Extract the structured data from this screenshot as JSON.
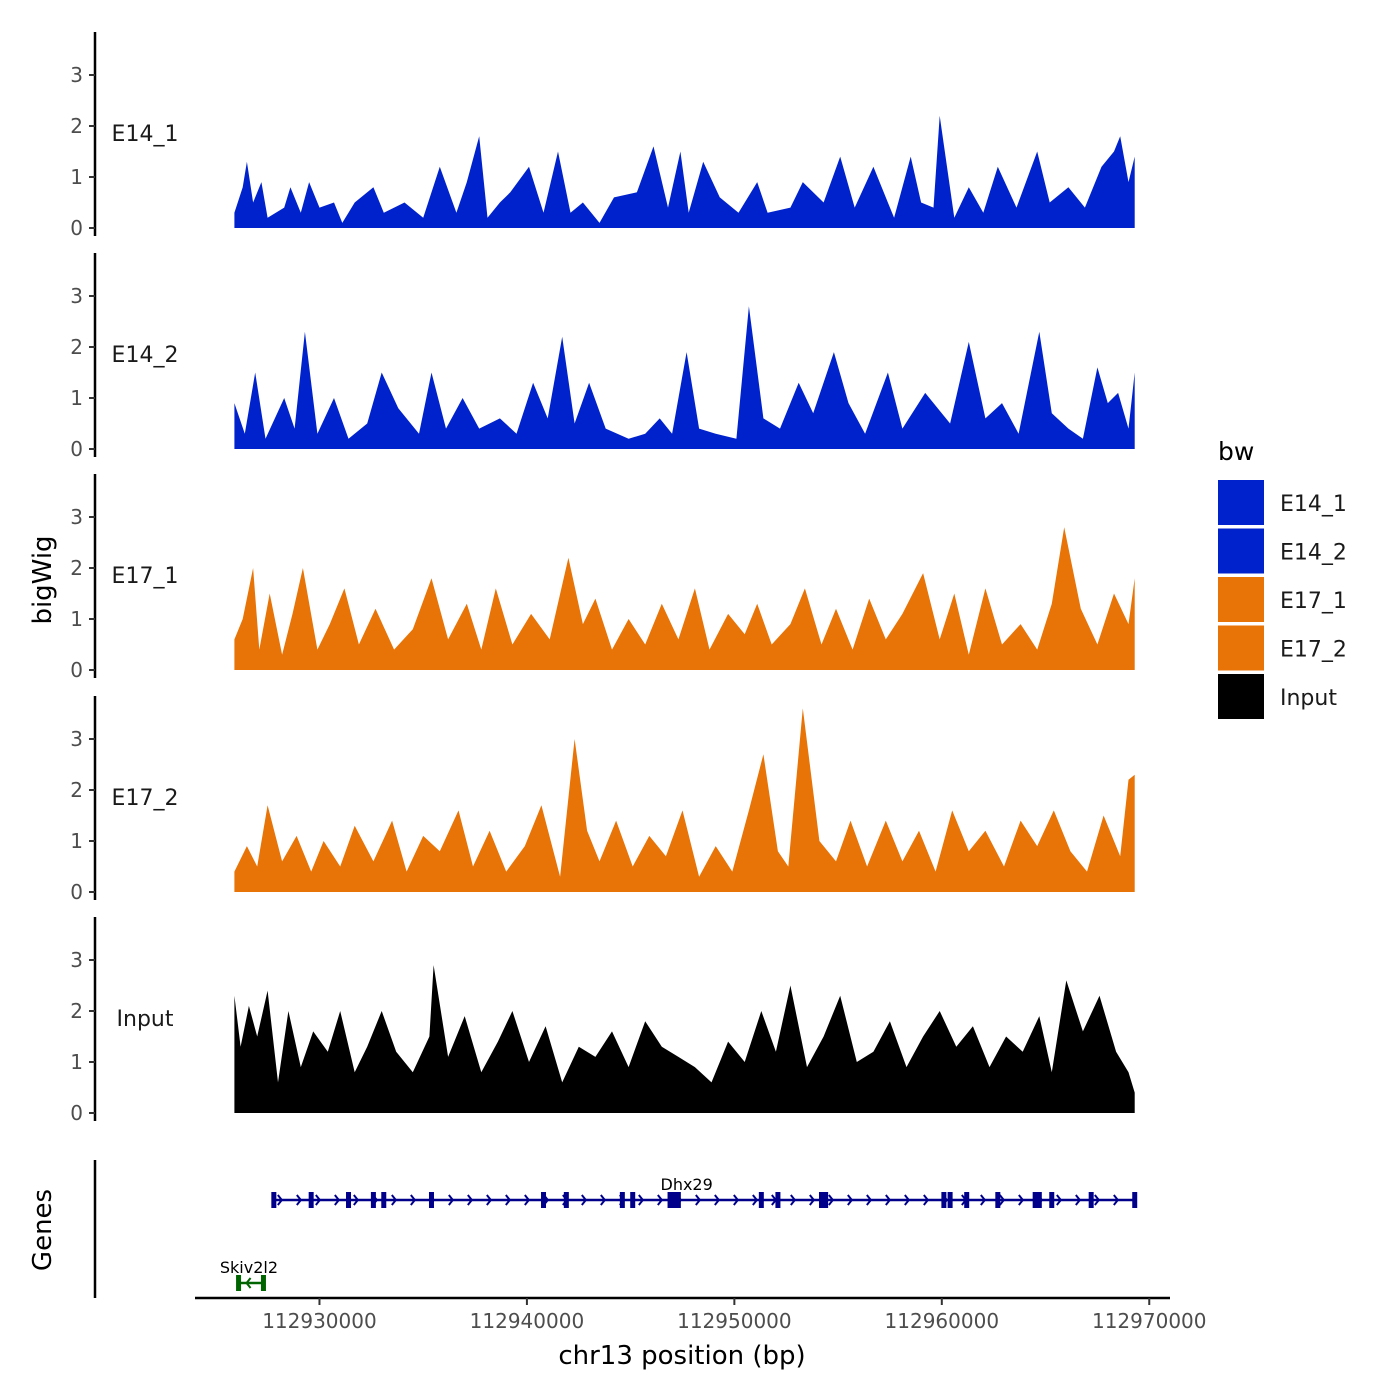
{
  "chart_data": {
    "type": "area",
    "title": "",
    "xlabel": "chr13 position (bp)",
    "ylabel": "bigWig",
    "xlim": [
      112924000,
      112971000
    ],
    "ylim": [
      0,
      3.8
    ],
    "x_ticks": [
      112930000,
      112940000,
      112950000,
      112960000,
      112970000
    ],
    "x_tick_labels": [
      "112930000",
      "112940000",
      "112950000",
      "112960000",
      "112970000"
    ],
    "y_ticks": [
      0,
      1,
      2,
      3
    ],
    "y_tick_labels": [
      "0",
      "1",
      "2",
      "3"
    ],
    "legend": {
      "title": "bw",
      "position": "right",
      "entries": [
        {
          "label": "E14_1",
          "color": "#0022CC"
        },
        {
          "label": "E14_2",
          "color": "#0022CC"
        },
        {
          "label": "E17_1",
          "color": "#E87306"
        },
        {
          "label": "E17_2",
          "color": "#E87306"
        },
        {
          "label": "Input",
          "color": "#000000"
        }
      ]
    },
    "series": [
      {
        "name": "E14_1",
        "color": "#0022CC",
        "x": [
          112925900,
          112926300,
          112926500,
          112926800,
          112927200,
          112927500,
          112928300,
          112928600,
          112929100,
          112929500,
          112930000,
          112930700,
          112931100,
          112931700,
          112932600,
          112933100,
          112934100,
          112935000,
          112935800,
          112936600,
          112937100,
          112937700,
          112938100,
          112938700,
          112939200,
          112940100,
          112940800,
          112941500,
          112942100,
          112942700,
          112943500,
          112944200,
          112945300,
          112946100,
          112946800,
          112947400,
          112947800,
          112948500,
          112949300,
          112950200,
          112951100,
          112951600,
          112952700,
          112953300,
          112954300,
          112955100,
          112955800,
          112956700,
          112957700,
          112958500,
          112959000,
          112959600,
          112959900,
          112960600,
          112961300,
          112962000,
          112962700,
          112963600,
          112964600,
          112965200,
          112966100,
          112966900,
          112967700,
          112968300,
          112968600,
          112969000,
          112969300
        ],
        "values": [
          0.3,
          0.8,
          1.3,
          0.5,
          0.9,
          0.2,
          0.4,
          0.8,
          0.3,
          0.9,
          0.4,
          0.5,
          0.1,
          0.5,
          0.8,
          0.3,
          0.5,
          0.2,
          1.2,
          0.3,
          0.9,
          1.8,
          0.2,
          0.5,
          0.7,
          1.2,
          0.3,
          1.5,
          0.3,
          0.5,
          0.1,
          0.6,
          0.7,
          1.6,
          0.4,
          1.5,
          0.3,
          1.3,
          0.6,
          0.3,
          0.9,
          0.3,
          0.4,
          0.9,
          0.5,
          1.4,
          0.4,
          1.2,
          0.2,
          1.4,
          0.5,
          0.4,
          2.2,
          0.2,
          0.8,
          0.3,
          1.2,
          0.4,
          1.5,
          0.5,
          0.8,
          0.4,
          1.2,
          1.5,
          1.8,
          0.9,
          1.4
        ]
      },
      {
        "name": "E14_2",
        "color": "#0022CC",
        "x": [
          112925900,
          112926400,
          112926900,
          112927400,
          112928300,
          112928800,
          112929300,
          112929900,
          112930700,
          112931400,
          112932300,
          112933000,
          112933800,
          112934800,
          112935400,
          112936100,
          112936900,
          112937700,
          112938700,
          112939500,
          112940300,
          112941000,
          112941700,
          112942300,
          112943000,
          112943800,
          112944900,
          112945700,
          112946400,
          112947000,
          112947700,
          112948300,
          112949100,
          112950100,
          112950700,
          112951400,
          112952200,
          112953100,
          112953800,
          112954800,
          112955500,
          112956300,
          112957400,
          112958100,
          112959200,
          112960400,
          112961300,
          112962100,
          112962900,
          112963700,
          112964700,
          112965300,
          112966100,
          112966800,
          112967500,
          112968000,
          112968500,
          112969000,
          112969300
        ],
        "values": [
          0.9,
          0.3,
          1.5,
          0.2,
          1.0,
          0.4,
          2.3,
          0.3,
          1.0,
          0.2,
          0.5,
          1.5,
          0.8,
          0.3,
          1.5,
          0.4,
          1.0,
          0.4,
          0.6,
          0.3,
          1.3,
          0.6,
          2.2,
          0.5,
          1.3,
          0.4,
          0.2,
          0.3,
          0.6,
          0.3,
          1.9,
          0.4,
          0.3,
          0.2,
          2.8,
          0.6,
          0.4,
          1.3,
          0.7,
          1.9,
          0.9,
          0.3,
          1.5,
          0.4,
          1.1,
          0.5,
          2.1,
          0.6,
          0.9,
          0.3,
          2.3,
          0.7,
          0.4,
          0.2,
          1.6,
          0.9,
          1.1,
          0.4,
          1.5
        ]
      },
      {
        "name": "E17_1",
        "color": "#E87306",
        "x": [
          112925900,
          112926300,
          112926800,
          112927100,
          112927600,
          112928200,
          112928700,
          112929200,
          112929900,
          112930500,
          112931200,
          112931900,
          112932700,
          112933600,
          112934500,
          112935400,
          112936200,
          112937100,
          112937800,
          112938500,
          112939300,
          112940200,
          112941100,
          112942000,
          112942700,
          112943300,
          112944100,
          112944900,
          112945700,
          112946500,
          112947300,
          112948100,
          112948800,
          112949700,
          112950500,
          112951100,
          112951800,
          112952700,
          112953400,
          112954200,
          112954900,
          112955700,
          112956500,
          112957300,
          112958100,
          112959100,
          112959900,
          112960600,
          112961300,
          112962100,
          112962900,
          112963800,
          112964600,
          112965300,
          112965900,
          112966700,
          112967500,
          112968300,
          112969000,
          112969300
        ],
        "values": [
          0.6,
          1.0,
          2.0,
          0.4,
          1.5,
          0.3,
          1.1,
          2.0,
          0.4,
          0.9,
          1.6,
          0.5,
          1.2,
          0.4,
          0.8,
          1.8,
          0.6,
          1.3,
          0.4,
          1.6,
          0.5,
          1.1,
          0.6,
          2.2,
          0.9,
          1.4,
          0.4,
          1.0,
          0.5,
          1.3,
          0.6,
          1.6,
          0.4,
          1.1,
          0.7,
          1.3,
          0.5,
          0.9,
          1.6,
          0.5,
          1.2,
          0.4,
          1.4,
          0.6,
          1.1,
          1.9,
          0.6,
          1.5,
          0.3,
          1.6,
          0.5,
          0.9,
          0.4,
          1.3,
          2.8,
          1.2,
          0.5,
          1.5,
          0.9,
          1.8
        ]
      },
      {
        "name": "E17_2",
        "color": "#E87306",
        "x": [
          112925900,
          112926500,
          112927000,
          112927500,
          112928200,
          112928900,
          112929600,
          112930200,
          112931000,
          112931700,
          112932600,
          112933500,
          112934200,
          112935000,
          112935800,
          112936700,
          112937400,
          112938200,
          112939000,
          112939900,
          112940700,
          112941600,
          112942300,
          112942900,
          112943500,
          112944300,
          112945100,
          112945900,
          112946700,
          112947500,
          112948300,
          112949100,
          112949900,
          112950700,
          112951400,
          112952100,
          112952600,
          112953300,
          112954100,
          112954900,
          112955600,
          112956400,
          112957300,
          112958100,
          112958900,
          112959700,
          112960500,
          112961300,
          112962100,
          112963000,
          112963800,
          112964600,
          112965400,
          112966200,
          112967000,
          112967800,
          112968600,
          112969000,
          112969300
        ],
        "values": [
          0.4,
          0.9,
          0.5,
          1.7,
          0.6,
          1.1,
          0.4,
          1.0,
          0.5,
          1.3,
          0.6,
          1.4,
          0.4,
          1.1,
          0.8,
          1.6,
          0.5,
          1.2,
          0.4,
          0.9,
          1.7,
          0.3,
          3.0,
          1.2,
          0.6,
          1.4,
          0.5,
          1.1,
          0.7,
          1.6,
          0.3,
          0.9,
          0.4,
          1.6,
          2.7,
          0.8,
          0.5,
          3.6,
          1.0,
          0.6,
          1.4,
          0.5,
          1.4,
          0.6,
          1.2,
          0.4,
          1.6,
          0.8,
          1.2,
          0.5,
          1.4,
          0.9,
          1.6,
          0.8,
          0.4,
          1.5,
          0.7,
          2.2,
          2.3
        ]
      },
      {
        "name": "Input",
        "color": "#000000",
        "x": [
          112925900,
          112926200,
          112926600,
          112927000,
          112927500,
          112928000,
          112928500,
          112929100,
          112929700,
          112930400,
          112931000,
          112931700,
          112932300,
          112933000,
          112933700,
          112934500,
          112935300,
          112935500,
          112936200,
          112937000,
          112937800,
          112938600,
          112939300,
          112940100,
          112940900,
          112941700,
          112942500,
          112943300,
          112944100,
          112944900,
          112945700,
          112946500,
          112947300,
          112948100,
          112948900,
          112949700,
          112950500,
          112951300,
          112952000,
          112952700,
          112953500,
          112954300,
          112955100,
          112955900,
          112956700,
          112957500,
          112958300,
          112959100,
          112959900,
          112960700,
          112961500,
          112962300,
          112963100,
          112963900,
          112964700,
          112965300,
          112966000,
          112966800,
          112967600,
          112968400,
          112969000,
          112969300
        ],
        "values": [
          2.3,
          1.3,
          2.1,
          1.5,
          2.4,
          0.6,
          2.0,
          0.9,
          1.6,
          1.2,
          2.0,
          0.8,
          1.3,
          2.0,
          1.2,
          0.8,
          1.5,
          2.9,
          1.1,
          1.9,
          0.8,
          1.4,
          2.0,
          1.0,
          1.7,
          0.6,
          1.3,
          1.1,
          1.6,
          0.9,
          1.8,
          1.3,
          1.1,
          0.9,
          0.6,
          1.4,
          1.0,
          2.0,
          1.2,
          2.5,
          0.9,
          1.5,
          2.3,
          1.0,
          1.2,
          1.8,
          0.9,
          1.5,
          2.0,
          1.3,
          1.7,
          0.9,
          1.5,
          1.2,
          1.9,
          0.8,
          2.6,
          1.6,
          2.3,
          1.2,
          0.8,
          0.4
        ]
      }
    ],
    "genes_track": {
      "label": "Genes",
      "genes": [
        {
          "name": "Dhx29",
          "start": 112927800,
          "end": 112969300,
          "strand": "+",
          "color": "#00008B",
          "exons": [
            112927800,
            112929600,
            112931400,
            112932600,
            112933100,
            112935400,
            112940800,
            112941900,
            112944600,
            112945100,
            112946900,
            112947100,
            112947300,
            112951300,
            112952100,
            112954200,
            112954400,
            112960100,
            112960400,
            112961200,
            112962700,
            112964500,
            112964700,
            112965300,
            112967200,
            112969300
          ]
        },
        {
          "name": "Skiv2l2",
          "start": 112926100,
          "end": 112927300,
          "strand": "-",
          "color": "#006400",
          "exons": [
            112926100,
            112927300
          ]
        }
      ]
    }
  }
}
